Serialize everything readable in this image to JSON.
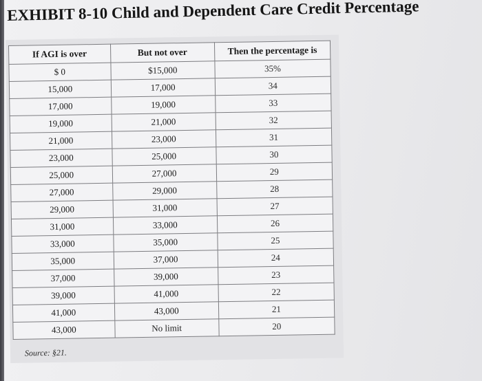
{
  "title": "EXHIBIT 8-10 Child and Dependent Care Credit Percentage",
  "table": {
    "headers": [
      "If AGI is over",
      "But not over",
      "Then the percentage is"
    ],
    "rows": [
      [
        "$ 0",
        "$15,000",
        "35%"
      ],
      [
        "15,000",
        "17,000",
        "34"
      ],
      [
        "17,000",
        "19,000",
        "33"
      ],
      [
        "19,000",
        "21,000",
        "32"
      ],
      [
        "21,000",
        "23,000",
        "31"
      ],
      [
        "23,000",
        "25,000",
        "30"
      ],
      [
        "25,000",
        "27,000",
        "29"
      ],
      [
        "27,000",
        "29,000",
        "28"
      ],
      [
        "29,000",
        "31,000",
        "27"
      ],
      [
        "31,000",
        "33,000",
        "26"
      ],
      [
        "33,000",
        "35,000",
        "25"
      ],
      [
        "35,000",
        "37,000",
        "24"
      ],
      [
        "37,000",
        "39,000",
        "23"
      ],
      [
        "39,000",
        "41,000",
        "22"
      ],
      [
        "41,000",
        "43,000",
        "21"
      ],
      [
        "43,000",
        "No limit",
        "20"
      ]
    ]
  },
  "source": "Source: §21."
}
